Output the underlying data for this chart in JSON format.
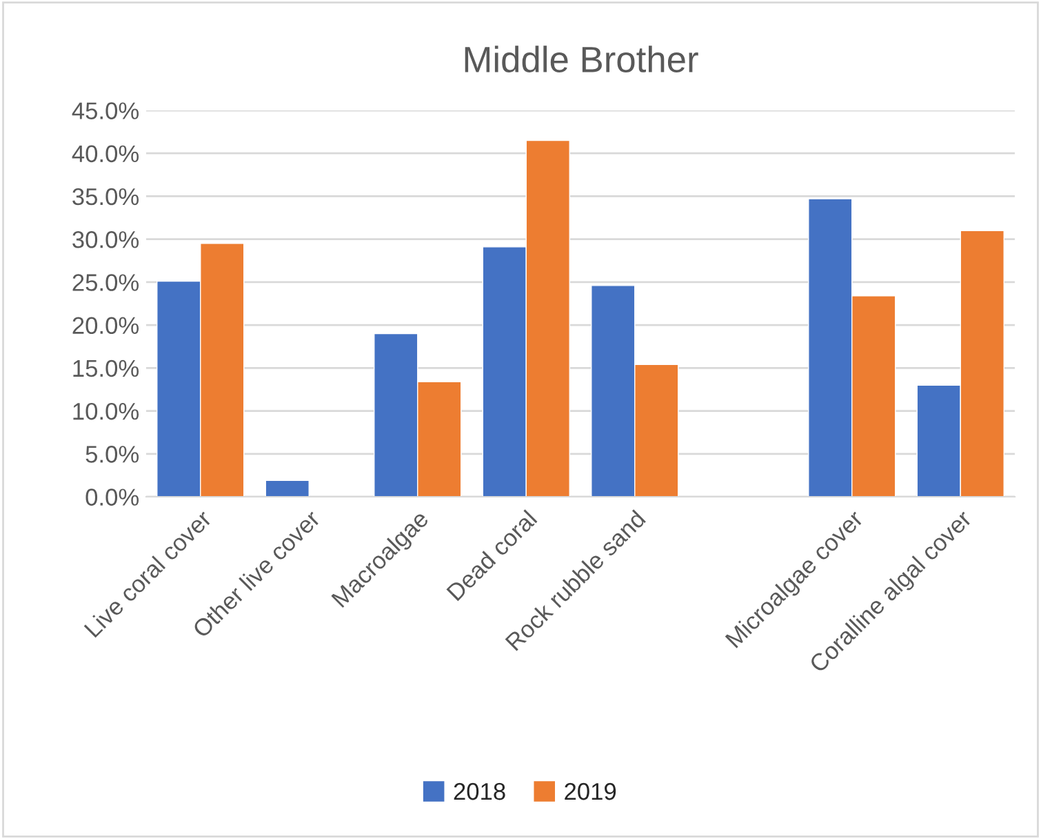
{
  "chart_data": {
    "type": "bar",
    "title": "Middle Brother",
    "categories": [
      "Live coral cover",
      "Other live cover",
      "Macroalgae",
      "Dead coral",
      "Rock rubble sand",
      null,
      "Microalgae cover",
      "Coralline algal cover"
    ],
    "series": [
      {
        "name": "2018",
        "color": "#4472c4",
        "values": [
          25.1,
          1.9,
          19.0,
          29.1,
          24.6,
          null,
          34.7,
          13.0
        ]
      },
      {
        "name": "2019",
        "color": "#ed7d31",
        "values": [
          29.5,
          null,
          13.4,
          41.5,
          15.4,
          null,
          23.4,
          31.0
        ]
      }
    ],
    "ylim": [
      0,
      45
    ],
    "yticks": [
      {
        "value": 0,
        "label": "0.0%"
      },
      {
        "value": 5,
        "label": "5.0%"
      },
      {
        "value": 10,
        "label": "10.0%"
      },
      {
        "value": 15,
        "label": "15.0%"
      },
      {
        "value": 20,
        "label": "20.0%"
      },
      {
        "value": 25,
        "label": "25.0%"
      },
      {
        "value": 30,
        "label": "30.0%"
      },
      {
        "value": 35,
        "label": "35.0%"
      },
      {
        "value": 40,
        "label": "40.0%"
      },
      {
        "value": 45,
        "label": "45.0%"
      }
    ],
    "grid": "y",
    "legend": "bottom"
  }
}
